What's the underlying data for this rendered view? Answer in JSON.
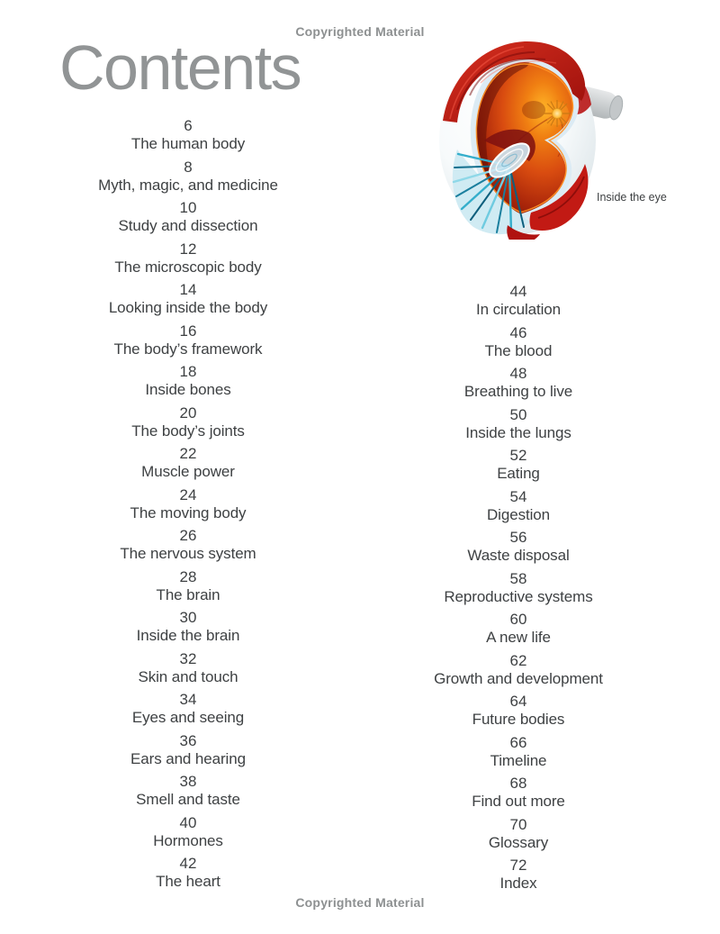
{
  "page": {
    "title": "Contents",
    "copyright_top": "Copyrighted Material",
    "copyright_bottom": "Copyrighted Material"
  },
  "illustration": {
    "name": "eye-cutaway",
    "caption": "Inside the eye"
  },
  "toc": {
    "left_column": [
      {
        "page": "6",
        "title": "The human body"
      },
      {
        "page": "8",
        "title": "Myth, magic, and medicine"
      },
      {
        "page": "10",
        "title": "Study and dissection"
      },
      {
        "page": "12",
        "title": "The microscopic body"
      },
      {
        "page": "14",
        "title": "Looking inside the body"
      },
      {
        "page": "16",
        "title": "The body’s framework"
      },
      {
        "page": "18",
        "title": "Inside bones"
      },
      {
        "page": "20",
        "title": "The body’s joints"
      },
      {
        "page": "22",
        "title": "Muscle power"
      },
      {
        "page": "24",
        "title": "The moving body"
      },
      {
        "page": "26",
        "title": "The nervous system"
      },
      {
        "page": "28",
        "title": "The brain"
      },
      {
        "page": "30",
        "title": "Inside the brain"
      },
      {
        "page": "32",
        "title": "Skin and touch"
      },
      {
        "page": "34",
        "title": "Eyes and seeing"
      },
      {
        "page": "36",
        "title": "Ears and hearing"
      },
      {
        "page": "38",
        "title": "Smell and taste"
      },
      {
        "page": "40",
        "title": "Hormones"
      },
      {
        "page": "42",
        "title": "The heart"
      }
    ],
    "right_column": [
      {
        "page": "44",
        "title": "In circulation"
      },
      {
        "page": "46",
        "title": "The blood"
      },
      {
        "page": "48",
        "title": "Breathing to live"
      },
      {
        "page": "50",
        "title": "Inside the lungs"
      },
      {
        "page": "52",
        "title": "Eating"
      },
      {
        "page": "54",
        "title": "Digestion"
      },
      {
        "page": "56",
        "title": "Waste disposal"
      },
      {
        "page": "58",
        "title": "Reproductive systems"
      },
      {
        "page": "60",
        "title": "A new life"
      },
      {
        "page": "62",
        "title": "Growth and development"
      },
      {
        "page": "64",
        "title": "Future bodies"
      },
      {
        "page": "66",
        "title": "Timeline"
      },
      {
        "page": "68",
        "title": "Find out more"
      },
      {
        "page": "70",
        "title": "Glossary"
      },
      {
        "page": "72",
        "title": "Index"
      }
    ]
  },
  "colors": {
    "title_gray": "#919495",
    "entry_text": "#3e4143",
    "copyright_gray": "#8d9091",
    "muscle_red": "#c41c1c",
    "fundus_orange": "#e25313",
    "iris_teal": "#35aecb"
  }
}
